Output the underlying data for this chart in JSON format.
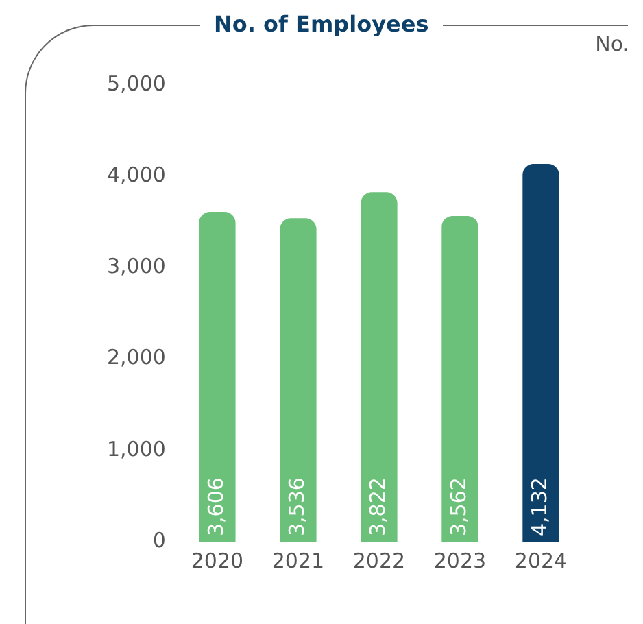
{
  "chart_data": {
    "type": "bar",
    "title": "No. of Employees",
    "ylabel": "No.",
    "categories": [
      "2020",
      "2021",
      "2022",
      "2023",
      "2024"
    ],
    "values": [
      3606,
      3536,
      3822,
      3562,
      4132
    ],
    "value_labels": [
      "3,606",
      "3,536",
      "3,822",
      "3,562",
      "4,132"
    ],
    "colors": [
      "#6cc17a",
      "#6cc17a",
      "#6cc17a",
      "#6cc17a",
      "#0d4169"
    ],
    "ylim": [
      0,
      5000
    ],
    "yticks": [
      {
        "value": 0,
        "label": "0"
      },
      {
        "value": 1000,
        "label": "1,000"
      },
      {
        "value": 2000,
        "label": "2,000"
      },
      {
        "value": 3000,
        "label": "3,000"
      },
      {
        "value": 4000,
        "label": "4,000"
      },
      {
        "value": 5000,
        "label": "5,000"
      }
    ],
    "grid": false,
    "legend": false
  }
}
